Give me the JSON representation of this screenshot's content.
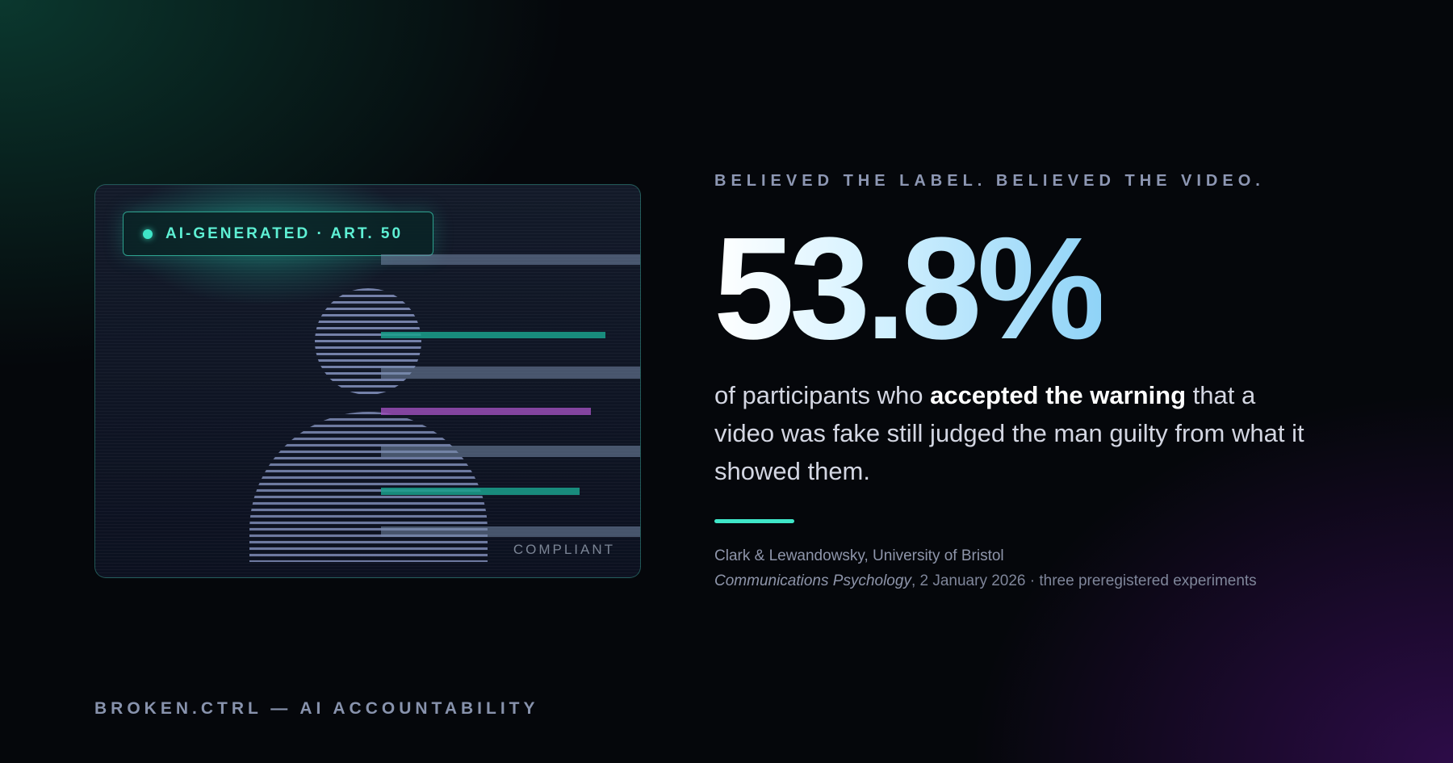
{
  "badge": {
    "text": "AI-GENERATED · ART. 50"
  },
  "card": {
    "compliant_text": "COMPLIANT"
  },
  "kicker": "BELIEVED THE LABEL. BELIEVED THE VIDEO.",
  "stat": "53.8%",
  "description": {
    "before": "of participants who ",
    "bold": "accepted the warning",
    "after": " that a video was fake still judged the man guilty from what it showed them."
  },
  "citation": {
    "authors": "Clark & Lewandowsky, University of Bristol",
    "journal": "Communications Psychology",
    "details": ", 2 January 2026 · three preregistered experiments"
  },
  "footer": "BROKEN.CTRL — AI ACCOUNTABILITY",
  "colors": {
    "accent": "#3fe6c8",
    "background": "#05070b",
    "stat_gradient_end": "#8fd3f7"
  }
}
